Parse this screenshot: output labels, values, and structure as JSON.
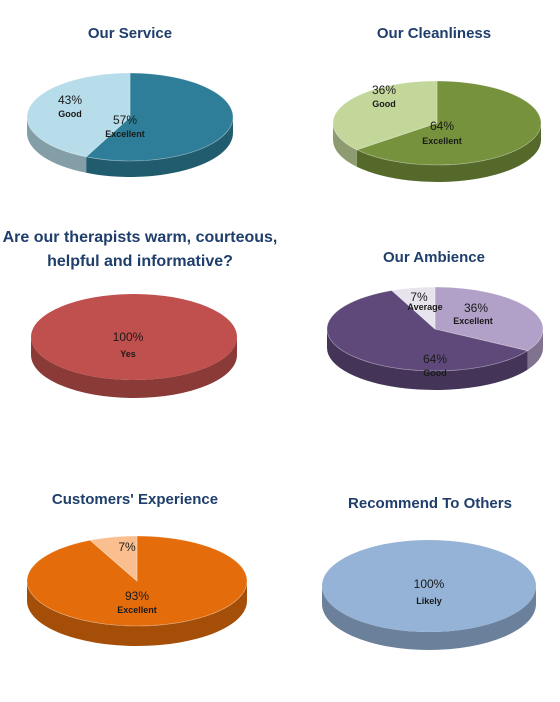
{
  "chart_data": [
    {
      "type": "pie",
      "title": "Our Service",
      "categories": [
        "Excellent",
        "Good"
      ],
      "values": [
        57,
        43
      ],
      "labels": [
        "57%",
        "43%"
      ],
      "colors": [
        "#2e7e99",
        "#b7dcea"
      ]
    },
    {
      "type": "pie",
      "title": "Our Cleanliness",
      "categories": [
        "Excellent",
        "Good"
      ],
      "values": [
        64,
        36
      ],
      "labels": [
        "64%",
        "36%"
      ],
      "colors": [
        "#76923c",
        "#c3d79b"
      ]
    },
    {
      "type": "pie",
      "title": "Are our therapists warm, courteous, helpful and informative?",
      "categories": [
        "Yes"
      ],
      "values": [
        100
      ],
      "labels": [
        "100%"
      ],
      "colors": [
        "#c0504d"
      ]
    },
    {
      "type": "pie",
      "title": "Our Ambience",
      "categories": [
        "Excellent",
        "Good",
        "Average"
      ],
      "values": [
        36,
        64,
        7
      ],
      "labels": [
        "36%",
        "64%",
        "7%"
      ],
      "colors": [
        "#b1a0c7",
        "#5f497a",
        "#e8e4ee"
      ]
    },
    {
      "type": "pie",
      "title": "Customers' Experience",
      "categories": [
        "Excellent",
        ""
      ],
      "values": [
        93,
        7
      ],
      "labels": [
        "93%",
        "7%"
      ],
      "colors": [
        "#e46c0a",
        "#fbbf8f"
      ]
    },
    {
      "type": "pie",
      "title": "Recommend To Others",
      "categories": [
        "Likely"
      ],
      "values": [
        100
      ],
      "labels": [
        "100%"
      ],
      "colors": [
        "#95b3d7"
      ]
    }
  ]
}
